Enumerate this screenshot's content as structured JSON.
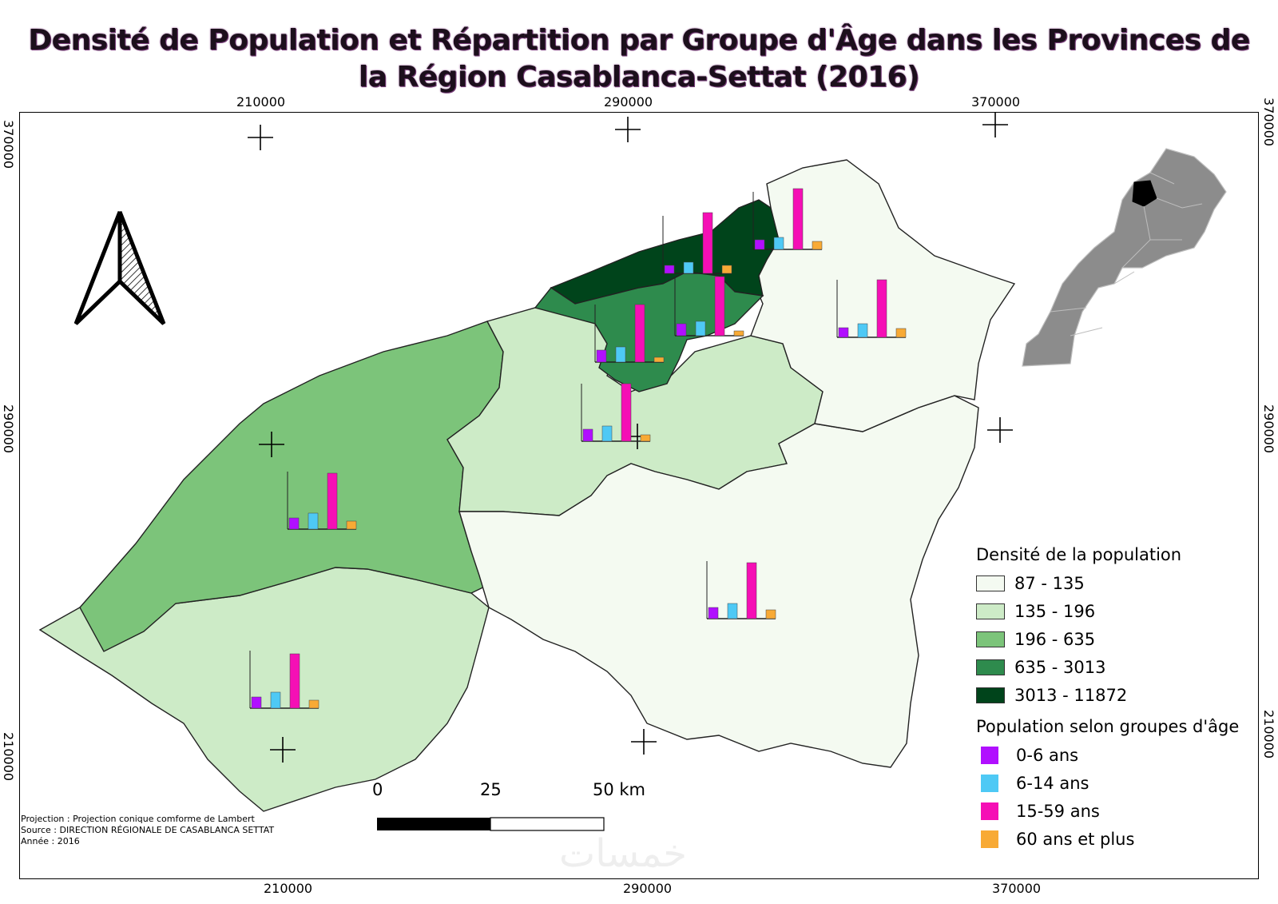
{
  "title_line1": "Densité de Population et Répartition par Groupe d'Âge dans les Provinces de",
  "title_line2": "la Région Casablanca-Settat (2016)",
  "grid_labels": {
    "top": [
      "210000",
      "290000",
      "370000"
    ],
    "bottom": [
      "210000",
      "290000",
      "370000"
    ],
    "left": [
      "370000",
      "290000",
      "210000"
    ],
    "right": [
      "370000",
      "290000",
      "210000"
    ]
  },
  "legend": {
    "density_title": "Densité de la population",
    "density_classes": [
      {
        "label": "87 - 135",
        "color": "#f4faf1"
      },
      {
        "label": "135 - 196",
        "color": "#cdebc7"
      },
      {
        "label": "196 - 635",
        "color": "#7cc47a"
      },
      {
        "label": "635 - 3013",
        "color": "#2e8b4d"
      },
      {
        "label": "3013 - 11872",
        "color": "#00441b"
      }
    ],
    "age_title": "Population selon groupes d'âge",
    "age_groups": [
      {
        "label": "0-6 ans",
        "color": "#b10fff"
      },
      {
        "label": "6-14 ans",
        "color": "#4ec9f5"
      },
      {
        "label": "15-59 ans",
        "color": "#f50fb5"
      },
      {
        "label": "60 ans et plus",
        "color": "#f8aa35"
      }
    ]
  },
  "scale_bar": {
    "labels": [
      "0",
      "25",
      "50 km"
    ]
  },
  "notes": {
    "projection": "Projection : Projection conique comforme de Lambert",
    "source": "Source : DIRECTION RÉGIONALE DE CASABLANCA SETTAT",
    "year": "Année : 2016"
  },
  "watermark": "خمسات"
}
